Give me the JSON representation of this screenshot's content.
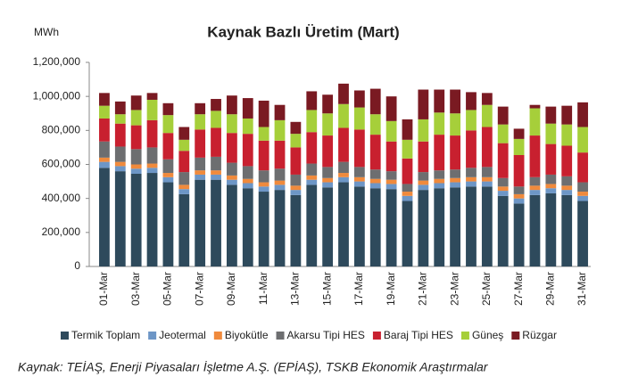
{
  "chart_data": {
    "type": "stacked_bar",
    "title": "Kaynak Bazlı Üretim (Mart)",
    "y_label": "MWh",
    "source": "Kaynak: TEİAŞ, Enerji Piyasaları İşletme A.Ş. (EPİAŞ), TSKB Ekonomik Araştırmalar",
    "categories": [
      "01-Mar",
      null,
      "03-Mar",
      null,
      "05-Mar",
      null,
      "07-Mar",
      null,
      "09-Mar",
      null,
      "11-Mar",
      null,
      "13-Mar",
      null,
      "15-Mar",
      null,
      "17-Mar",
      null,
      "19-Mar",
      null,
      "21-Mar",
      null,
      "23-Mar",
      null,
      "25-Mar",
      null,
      "27-Mar",
      null,
      "29-Mar",
      null,
      "31-Mar"
    ],
    "ylim": [
      0,
      1200000
    ],
    "yticks": [
      0,
      {
        "value": 200000,
        "label": "200,000"
      },
      {
        "value": 400000,
        "label": "400,000"
      },
      {
        "value": 600000,
        "label": "600,000"
      },
      {
        "value": 800000,
        "label": "800,000"
      },
      {
        "value": 1000000,
        "label": "1,000,000"
      },
      {
        "value": 1200000,
        "label": "1,200,000"
      }
    ],
    "series": [
      {
        "name": "Termik Toplam",
        "color": "#2e4a5c",
        "values": [
          580000,
          560000,
          545000,
          550000,
          495000,
          425000,
          510000,
          510000,
          480000,
          460000,
          440000,
          450000,
          420000,
          480000,
          465000,
          495000,
          470000,
          460000,
          455000,
          385000,
          450000,
          460000,
          465000,
          470000,
          470000,
          415000,
          370000,
          420000,
          430000,
          420000,
          385000
        ]
      },
      {
        "name": "Jeotermal",
        "color": "#6d96c6",
        "values": [
          35000,
          30000,
          30000,
          30000,
          30000,
          30000,
          30000,
          30000,
          30000,
          30000,
          30000,
          30000,
          30000,
          30000,
          30000,
          30000,
          30000,
          30000,
          30000,
          30000,
          30000,
          30000,
          30000,
          30000,
          30000,
          30000,
          30000,
          30000,
          30000,
          30000,
          30000
        ]
      },
      {
        "name": "Biyokütle",
        "color": "#f08a3c",
        "values": [
          25000,
          25000,
          25000,
          25000,
          25000,
          25000,
          25000,
          25000,
          25000,
          25000,
          25000,
          25000,
          25000,
          25000,
          25000,
          25000,
          25000,
          25000,
          25000,
          25000,
          25000,
          25000,
          25000,
          25000,
          25000,
          25000,
          25000,
          25000,
          25000,
          25000,
          25000
        ]
      },
      {
        "name": "Akarsu Tipi HES",
        "color": "#6d6e70",
        "values": [
          95000,
          90000,
          90000,
          95000,
          80000,
          75000,
          75000,
          80000,
          75000,
          75000,
          70000,
          70000,
          65000,
          70000,
          65000,
          65000,
          60000,
          55000,
          50000,
          45000,
          50000,
          50000,
          50000,
          55000,
          60000,
          50000,
          45000,
          50000,
          55000,
          55000,
          55000
        ]
      },
      {
        "name": "Baraj Tipi HES",
        "color": "#c8202f",
        "values": [
          135000,
          135000,
          140000,
          160000,
          155000,
          125000,
          165000,
          170000,
          175000,
          190000,
          175000,
          165000,
          160000,
          185000,
          185000,
          200000,
          220000,
          205000,
          175000,
          150000,
          180000,
          210000,
          200000,
          220000,
          235000,
          205000,
          185000,
          245000,
          180000,
          180000,
          175000
        ]
      },
      {
        "name": "Güneş",
        "color": "#a6cf3a",
        "values": [
          75000,
          55000,
          90000,
          120000,
          105000,
          65000,
          90000,
          100000,
          110000,
          90000,
          80000,
          120000,
          80000,
          130000,
          130000,
          140000,
          130000,
          120000,
          120000,
          110000,
          130000,
          130000,
          130000,
          120000,
          130000,
          110000,
          95000,
          160000,
          120000,
          125000,
          150000
        ]
      },
      {
        "name": "Rüzgar",
        "color": "#7a1a22",
        "values": [
          75000,
          75000,
          85000,
          40000,
          70000,
          75000,
          65000,
          70000,
          110000,
          120000,
          155000,
          90000,
          70000,
          110000,
          110000,
          120000,
          100000,
          150000,
          145000,
          120000,
          175000,
          135000,
          140000,
          105000,
          70000,
          105000,
          60000,
          20000,
          100000,
          110000,
          145000
        ]
      }
    ]
  }
}
